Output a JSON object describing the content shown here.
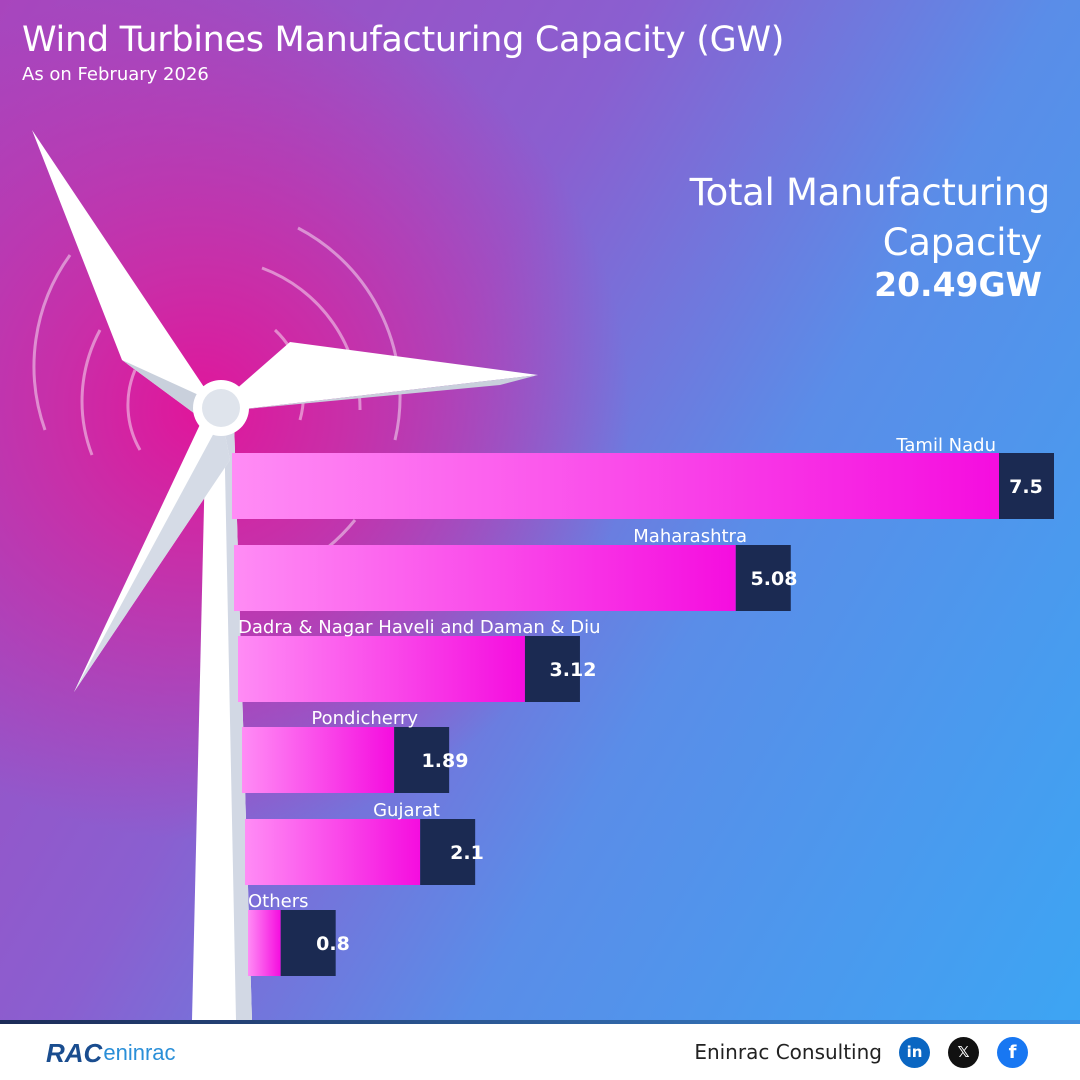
{
  "header": {
    "title": "Wind Turbines Manufacturing Capacity (GW)",
    "subtitle": "As on February 2026"
  },
  "total": {
    "label_line1": "Total Manufacturing",
    "label_line2": "Capacity",
    "value": "20.49GW"
  },
  "chart_data": {
    "type": "bar",
    "orientation": "horizontal",
    "title": "Wind Turbines Manufacturing Capacity (GW)",
    "categories": [
      "Tamil Nadu",
      "Maharashtra",
      "Dadra & Nagar Haveli and Daman & Diu",
      "Pondicherry",
      "Gujarat",
      "Others"
    ],
    "values": [
      7.5,
      5.08,
      3.12,
      1.89,
      2.1,
      0.8
    ],
    "value_labels": [
      "7.5",
      "5.08",
      "3.12",
      "1.89",
      "2.1",
      "0.8"
    ],
    "xlim": [
      0,
      7.5
    ],
    "grid": false,
    "legend": "none",
    "colors": {
      "bar_start": "#ff8cf5",
      "bar_end": "#f50ddf",
      "value_box": "#1b2a52"
    }
  },
  "footer": {
    "brand_rac": "RAC",
    "brand_name": "eninrac",
    "company": "Eninrac Consulting",
    "social_icons": [
      "linkedin-icon",
      "x-icon",
      "facebook-icon"
    ]
  }
}
